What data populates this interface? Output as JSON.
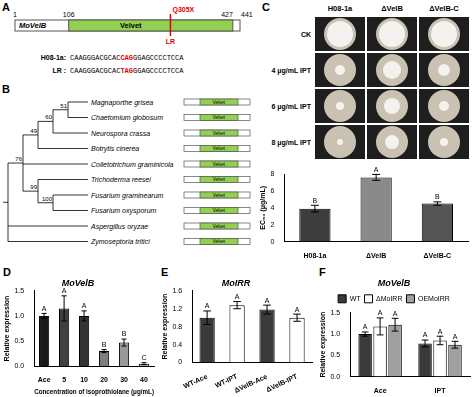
{
  "diagrams": {
    "A": {
      "panel": "A",
      "protein": "MoVelB",
      "start": 1,
      "end": 441,
      "domain": {
        "name": "Velvet",
        "start": 106,
        "end": 427
      },
      "mutation": {
        "label": "Q305X",
        "position": 305,
        "strain": "LR"
      },
      "sequences": [
        {
          "name": "H08-1a:",
          "prefix": "CAAGGGACGCAC",
          "codon": "CAG",
          "suffix": "GGAGCCCCTCCA"
        },
        {
          "name": "LR :",
          "prefix": "CAAGGGACGCAC",
          "codon": "TAG",
          "suffix": "GGAGCCCCTCCA"
        }
      ]
    },
    "B": {
      "panel": "B",
      "domain": "Velvet",
      "tree": {
        "children": [
          {
            "support": 76,
            "children": [
              {
                "support": 49,
                "children": [
                  {
                    "support": 60,
                    "children": [
                      {
                        "support": 51,
                        "children": [
                          "Magnaporthe grisea",
                          "Chaetomium globosum"
                        ]
                      },
                      "Neurospora crassa"
                    ]
                  },
                  "Botrytis cinerea"
                ]
              },
              "Colletotrichum graminicola",
              {
                "support": 99,
                "children": [
                  "Trichoderma reesei",
                  {
                    "support": 100,
                    "children": [
                      "Fusarium graminearum",
                      "Fusarium oxysporum"
                    ]
                  }
                ]
              }
            ]
          },
          "Aspergillus oryzae",
          "Zymoseptoria tritici"
        ]
      }
    },
    "C": {
      "panel": "C",
      "columns": [
        "H08-1a",
        "ΔVelB",
        "ΔVelB-C"
      ],
      "rows": [
        "CK",
        "4 μg/mL IPT",
        "6 μg/mL IPT",
        "8 μg/mL IPT"
      ]
    }
  },
  "chart_data": [
    {
      "type": "bar",
      "y_label": "EC₅₀ (μg/mL)",
      "categories": [
        "H08-1a",
        "ΔVelB",
        "ΔVelB-C"
      ],
      "values": [
        3.9,
        7.6,
        4.5
      ],
      "errors": [
        0.4,
        0.35,
        0.2
      ],
      "letters": [
        "B",
        "A",
        "B"
      ],
      "colors": [
        "#3d3d3d",
        "#8a8a8a",
        "#555555"
      ],
      "ylim": [
        0,
        8
      ],
      "yticks": [
        0,
        2,
        4,
        6,
        8
      ],
      "grid": false
    },
    {
      "type": "bar",
      "panel": "D",
      "title": "MoVelB",
      "y_label": "Relative expression",
      "x_label": "Concentration of isoprothiolane (μg/mL)",
      "categories": [
        "Ace",
        "5",
        "10",
        "20",
        "30",
        "40"
      ],
      "values": [
        1.0,
        1.15,
        1.0,
        0.3,
        0.47,
        0.05
      ],
      "errors": [
        0.05,
        0.25,
        0.1,
        0.03,
        0.07,
        0.02
      ],
      "letters": [
        "A",
        "A",
        "A",
        "B",
        "B",
        "C"
      ],
      "colors": [
        "#1a1a1a",
        "#404040",
        "#333333",
        "#7f7f7f",
        "#999999",
        "#c0c0c0"
      ],
      "ylim": [
        0,
        1.5
      ],
      "yticks": [
        {
          "value": 0,
          "label": "0.0"
        },
        {
          "value": 0.5,
          "label": "0.5"
        },
        {
          "value": 1,
          "label": "1.0"
        },
        {
          "value": 1.5,
          "label": "1.5"
        }
      ],
      "grid": false
    },
    {
      "type": "bar",
      "panel": "E",
      "title": "MoIRR",
      "y_label": "Relative expression",
      "categories": [
        "WT-Ace",
        "WT-IPT",
        "ΔVelB-Ace",
        "ΔVelB-IPT"
      ],
      "values": [
        1.0,
        1.28,
        1.18,
        1.0
      ],
      "errors": [
        0.15,
        0.08,
        0.1,
        0.08
      ],
      "letters": [
        "A",
        "A",
        "A",
        "A"
      ],
      "colors": [
        "#3a3a3a",
        "#ffffff",
        "#3a3a3a",
        "#ffffff"
      ],
      "ylim": [
        0,
        1.6
      ],
      "yticks": [
        0,
        0.4,
        0.8,
        1.2,
        1.6
      ],
      "grid": false
    },
    {
      "type": "bar",
      "panel": "F",
      "title": "MoVelB",
      "y_label": "Relative expression",
      "categories": [
        "Ace",
        "IPT"
      ],
      "series": [
        {
          "name": "WT",
          "color": "#3a3a3a",
          "values": [
            1.0,
            0.78
          ],
          "errors": [
            0.05,
            0.08
          ],
          "letters": [
            "A",
            "A"
          ]
        },
        {
          "name": "ΔMoIRR",
          "color": "#ffffff",
          "values": [
            1.18,
            0.85
          ],
          "errors": [
            0.2,
            0.1
          ],
          "letters": [
            "A",
            "A"
          ]
        },
        {
          "name": "OEMoIRR",
          "color": "#a0a0a0",
          "values": [
            1.22,
            0.75
          ],
          "errors": [
            0.15,
            0.08
          ],
          "letters": [
            "A",
            "A"
          ]
        }
      ],
      "legend": "top",
      "ylim": [
        0,
        1.5
      ],
      "yticks": [
        {
          "value": 0,
          "label": "0.0"
        },
        {
          "value": 0.5,
          "label": "0.5"
        },
        {
          "value": 1,
          "label": "1.0"
        },
        {
          "value": 1.5,
          "label": "1.5"
        }
      ],
      "grid": false
    }
  ]
}
